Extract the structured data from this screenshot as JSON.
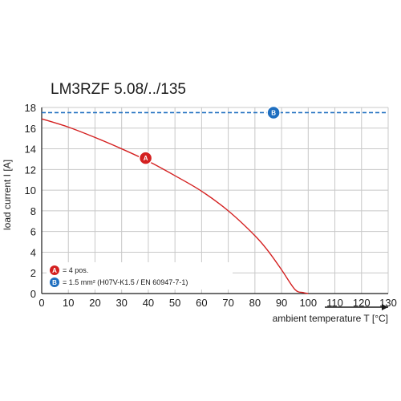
{
  "chart_data": {
    "type": "line",
    "title": "LM3RZF 5.08/../135",
    "xlabel": "ambient temperature T [°C]",
    "ylabel": "load current I [A]",
    "xlim": [
      0,
      130
    ],
    "ylim": [
      0,
      18
    ],
    "xticks": [
      0,
      10,
      20,
      30,
      40,
      50,
      60,
      70,
      80,
      90,
      100,
      110,
      120,
      130
    ],
    "yticks": [
      0,
      2,
      4,
      6,
      8,
      10,
      12,
      14,
      16,
      18
    ],
    "grid": true,
    "series": [
      {
        "name": "A",
        "color": "#d42020",
        "style": "solid",
        "x": [
          0,
          10,
          20,
          30,
          40,
          50,
          60,
          70,
          80,
          85,
          90,
          95,
          98,
          100
        ],
        "y": [
          16.9,
          16.1,
          15.1,
          14.0,
          12.8,
          11.4,
          9.9,
          8.0,
          5.6,
          4.1,
          2.3,
          0.4,
          0.1,
          0
        ]
      },
      {
        "name": "B",
        "color": "#1f6fc0",
        "style": "dashed",
        "x": [
          0,
          130
        ],
        "y": [
          17.5,
          17.5
        ]
      }
    ],
    "markers": [
      {
        "label": "A",
        "x": 39,
        "y": 13.1,
        "color": "#d42020"
      },
      {
        "label": "B",
        "x": 87,
        "y": 17.5,
        "color": "#1f6fc0"
      }
    ],
    "legend": {
      "placement": "bottom-left",
      "entries": [
        {
          "marker": "A",
          "text": "= 4 pos.",
          "color": "#d42020"
        },
        {
          "marker": "B",
          "text": "= 1.5 mm² (H07V-K1.5 / EN 60947-7-1)",
          "color": "#1f6fc0"
        }
      ]
    }
  },
  "colors": {
    "grid": "#c8c8c8",
    "axis": "#1a1a1a",
    "curve_a": "#d42020",
    "line_b": "#1f6fc0"
  }
}
